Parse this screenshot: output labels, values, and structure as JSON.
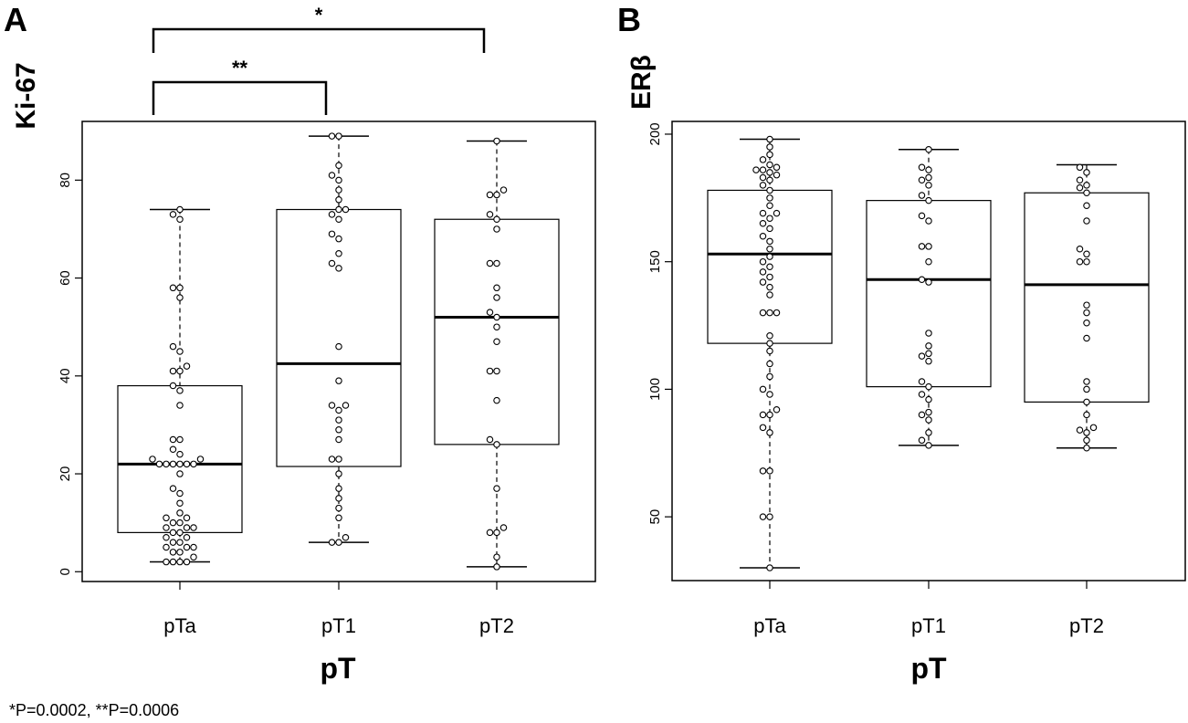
{
  "footnote": "*P=0.0002,  **P=0.0006",
  "chart_data": [
    {
      "panel": "A",
      "type": "box",
      "ylabel": "Ki-67",
      "xlabel": "pT",
      "categories": [
        "pTa",
        "pT1",
        "pT2"
      ],
      "ylim": [
        -2,
        92
      ],
      "yticks": [
        0,
        20,
        40,
        60,
        80
      ],
      "boxes": [
        {
          "min": 2,
          "q1": 8,
          "median": 22,
          "q3": 38,
          "max": 74
        },
        {
          "min": 6,
          "q1": 21.5,
          "median": 42.5,
          "q3": 74,
          "max": 89
        },
        {
          "min": 1,
          "q1": 26,
          "median": 52,
          "q3": 72,
          "max": 88
        }
      ],
      "points": [
        [
          2,
          2,
          2,
          2,
          3,
          4,
          4,
          5,
          5,
          5,
          6,
          6,
          7,
          7,
          8,
          8,
          9,
          9,
          9,
          10,
          10,
          11,
          11,
          12,
          14,
          16,
          17,
          20,
          22,
          22,
          22,
          22,
          22,
          22,
          23,
          23,
          24,
          25,
          27,
          27,
          34,
          37,
          38,
          41,
          41,
          42,
          45,
          46,
          56,
          58,
          58,
          72,
          73,
          74
        ],
        [
          6,
          6,
          7,
          11,
          13,
          15,
          17,
          20,
          23,
          23,
          27,
          29,
          31,
          33,
          34,
          34,
          39,
          46,
          62,
          63,
          65,
          68,
          69,
          72,
          73,
          74,
          74,
          76,
          78,
          80,
          81,
          83,
          89,
          89
        ],
        [
          1,
          3,
          8,
          8,
          9,
          17,
          26,
          27,
          35,
          41,
          41,
          47,
          50,
          52,
          53,
          56,
          58,
          63,
          63,
          70,
          72,
          73,
          77,
          77,
          78,
          88
        ]
      ],
      "annotations": [
        {
          "label": "*",
          "from": "pTa",
          "to": "pT2"
        },
        {
          "label": "**",
          "from": "pTa",
          "to": "pT1"
        }
      ]
    },
    {
      "panel": "B",
      "type": "box",
      "ylabel": "ERβ",
      "xlabel": "pT",
      "categories": [
        "pTa",
        "pT1",
        "pT2"
      ],
      "ylim": [
        25,
        205
      ],
      "yticks": [
        50,
        100,
        150,
        200
      ],
      "boxes": [
        {
          "min": 30,
          "q1": 118,
          "median": 153,
          "q3": 178,
          "max": 198
        },
        {
          "min": 78,
          "q1": 101,
          "median": 143,
          "q3": 174,
          "max": 194
        },
        {
          "min": 77,
          "q1": 95,
          "median": 141,
          "q3": 177,
          "max": 188
        }
      ],
      "points": [
        [
          30,
          50,
          50,
          68,
          68,
          83,
          85,
          90,
          90,
          92,
          98,
          100,
          105,
          110,
          115,
          118,
          121,
          130,
          130,
          130,
          137,
          140,
          142,
          144,
          146,
          148,
          150,
          152,
          155,
          158,
          160,
          163,
          165,
          167,
          169,
          169,
          172,
          175,
          178,
          180,
          182,
          183,
          184,
          185,
          186,
          186,
          187,
          188,
          190,
          192,
          195,
          198
        ],
        [
          78,
          80,
          83,
          88,
          90,
          91,
          96,
          98,
          101,
          103,
          111,
          113,
          114,
          117,
          122,
          142,
          143,
          150,
          156,
          156,
          166,
          168,
          174,
          176,
          180,
          182,
          183,
          186,
          187,
          194
        ],
        [
          77,
          80,
          83,
          84,
          85,
          90,
          95,
          100,
          103,
          120,
          126,
          130,
          133,
          150,
          150,
          153,
          155,
          166,
          172,
          177,
          179,
          180,
          182,
          185,
          187
        ]
      ],
      "annotations": []
    }
  ]
}
